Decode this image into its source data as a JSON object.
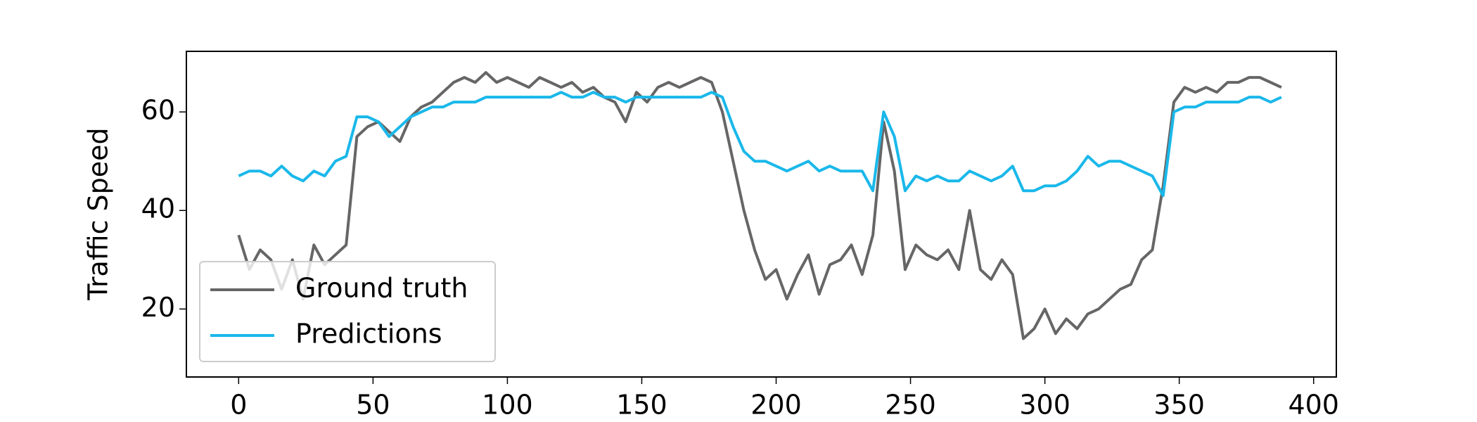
{
  "chart_data": {
    "type": "line",
    "y_label": "Traffic Speed",
    "x": [
      0,
      4,
      8,
      12,
      16,
      20,
      24,
      28,
      32,
      36,
      40,
      44,
      48,
      52,
      56,
      60,
      64,
      68,
      72,
      76,
      80,
      84,
      88,
      92,
      96,
      100,
      104,
      108,
      112,
      116,
      120,
      124,
      128,
      132,
      136,
      140,
      144,
      148,
      152,
      156,
      160,
      164,
      168,
      172,
      176,
      180,
      184,
      188,
      192,
      196,
      200,
      204,
      208,
      212,
      216,
      220,
      224,
      228,
      232,
      236,
      240,
      244,
      248,
      252,
      256,
      260,
      264,
      268,
      272,
      276,
      280,
      284,
      288,
      292,
      296,
      300,
      304,
      308,
      312,
      316,
      320,
      324,
      328,
      332,
      336,
      340,
      344,
      348,
      352,
      356,
      360,
      364,
      368,
      372,
      376,
      380,
      384,
      388
    ],
    "series": [
      {
        "name": "Ground truth",
        "color": "#666666",
        "values": [
          35,
          28,
          32,
          30,
          24,
          30,
          22,
          33,
          29,
          31,
          33,
          55,
          57,
          58,
          56,
          54,
          59,
          61,
          62,
          64,
          66,
          67,
          66,
          68,
          66,
          67,
          66,
          65,
          67,
          66,
          65,
          66,
          64,
          65,
          63,
          62,
          58,
          64,
          62,
          65,
          66,
          65,
          66,
          67,
          66,
          60,
          50,
          40,
          32,
          26,
          28,
          22,
          27,
          31,
          23,
          29,
          30,
          33,
          27,
          35,
          58,
          48,
          28,
          33,
          31,
          30,
          32,
          28,
          40,
          28,
          26,
          30,
          27,
          14,
          16,
          20,
          15,
          18,
          16,
          19,
          20,
          22,
          24,
          25,
          30,
          32,
          45,
          62,
          65,
          64,
          65,
          64,
          66,
          66,
          67,
          67,
          66,
          65
        ]
      },
      {
        "name": "Predictions",
        "color": "#1ab8ea",
        "values": [
          47,
          48,
          48,
          47,
          49,
          47,
          46,
          48,
          47,
          50,
          51,
          59,
          59,
          58,
          55,
          57,
          59,
          60,
          61,
          61,
          62,
          62,
          62,
          63,
          63,
          63,
          63,
          63,
          63,
          63,
          64,
          63,
          63,
          64,
          63,
          63,
          62,
          63,
          63,
          63,
          63,
          63,
          63,
          63,
          64,
          63,
          57,
          52,
          50,
          50,
          49,
          48,
          49,
          50,
          48,
          49,
          48,
          48,
          48,
          44,
          60,
          55,
          44,
          47,
          46,
          47,
          46,
          46,
          48,
          47,
          46,
          47,
          49,
          44,
          44,
          45,
          45,
          46,
          48,
          51,
          49,
          50,
          50,
          49,
          48,
          47,
          43,
          60,
          61,
          61,
          62,
          62,
          62,
          62,
          63,
          63,
          62,
          63
        ]
      }
    ],
    "xlim": [
      -19.45,
      408.45
    ],
    "xticks": [
      0,
      50,
      100,
      150,
      200,
      250,
      300,
      350,
      400
    ],
    "ylim": [
      6.2,
      72.3
    ],
    "yticks": [
      20,
      40,
      60
    ],
    "legend": "lower left"
  }
}
